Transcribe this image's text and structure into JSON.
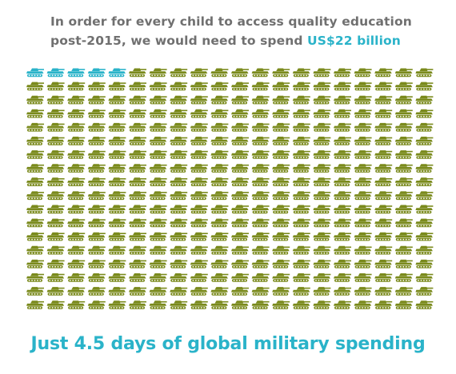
{
  "headline": {
    "line1": "In order for every child to access quality education",
    "line2_prefix": "post-2015, we would need to spend ",
    "line2_highlight": "US$22 billion"
  },
  "footer": {
    "text": "Just 4.5 days of global military spending"
  },
  "icon_grid": {
    "icon": "tank-icon",
    "rows": 18,
    "columns": 20,
    "highlighted_count": 5,
    "highlight_color": "#2ab3c9",
    "base_color": "#7a8a1c"
  }
}
